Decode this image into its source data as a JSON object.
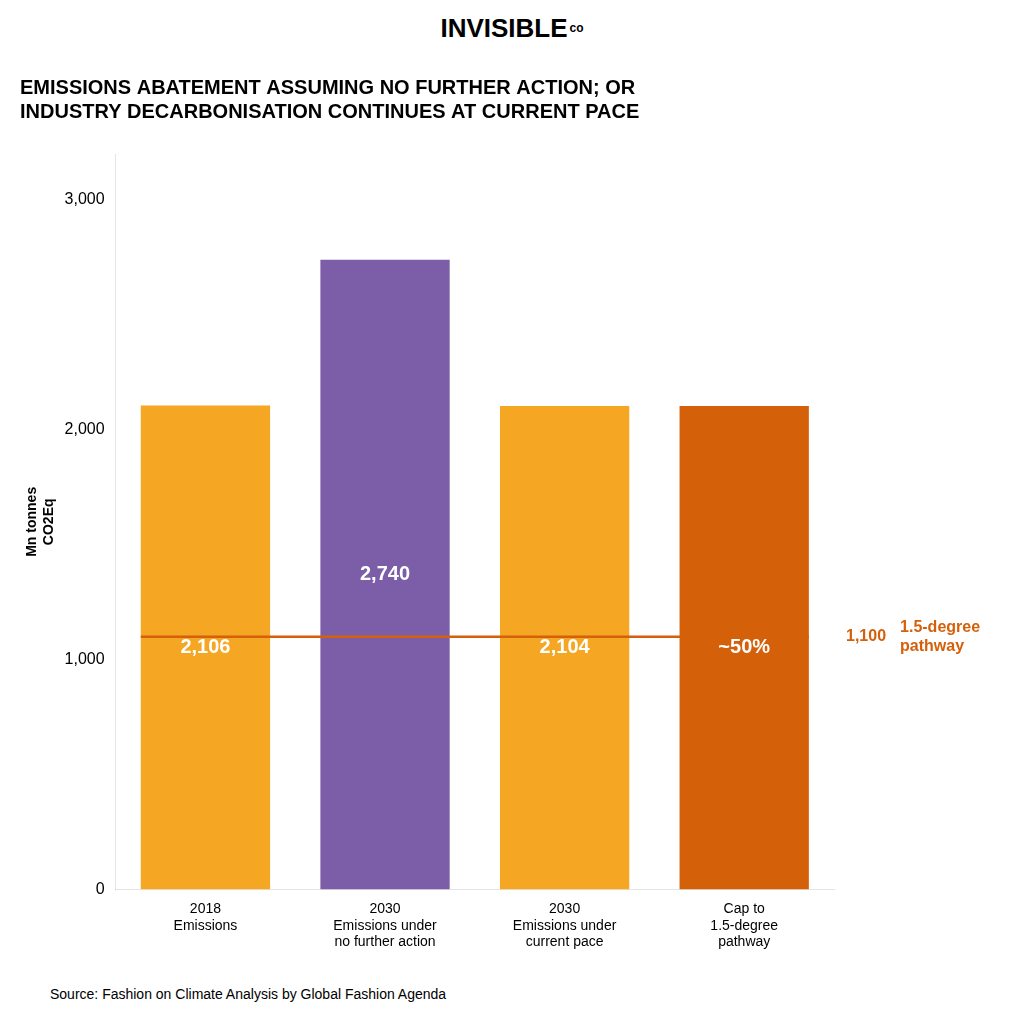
{
  "chart_data": {
    "type": "bar",
    "title": "EMISSIONS ABATEMENT ASSUMING NO FURTHER ACTION; OR\nINDUSTRY DECARBONISATION CONTINUES AT CURRENT PACE",
    "y_label": "Mn tonnes\nCO2Eq",
    "categories": [
      "2018\nEmissions",
      "2030\nEmissions under\nno further action",
      "2030\nEmissions under\ncurrent pace",
      "Cap to\n1.5-degree\npathway"
    ],
    "values": [
      2106,
      2740,
      2104,
      2104
    ],
    "value_labels": [
      "2,106",
      "2,740",
      "2,104",
      "~50%"
    ],
    "data_labels": true,
    "colors": [
      "#F5A623",
      "#7B5EA7",
      "#F5A623",
      "#D4600A"
    ],
    "ylim": [
      0,
      3200
    ],
    "yticks": [
      0,
      {
        "value": 1000,
        "label": "1,000"
      },
      {
        "value": 2000,
        "label": "2,000"
      },
      {
        "value": 3000,
        "label": "3,000"
      }
    ],
    "grid": false,
    "reference_line": {
      "value": 1100,
      "label": "1,100",
      "annotation": "1.5-degree\npathway",
      "color": "#D4600A"
    },
    "logo": {
      "text": "INVISIBLE",
      "superscript": "co"
    },
    "source": "Source: Fashion on Climate Analysis by Global Fashion Agenda"
  }
}
